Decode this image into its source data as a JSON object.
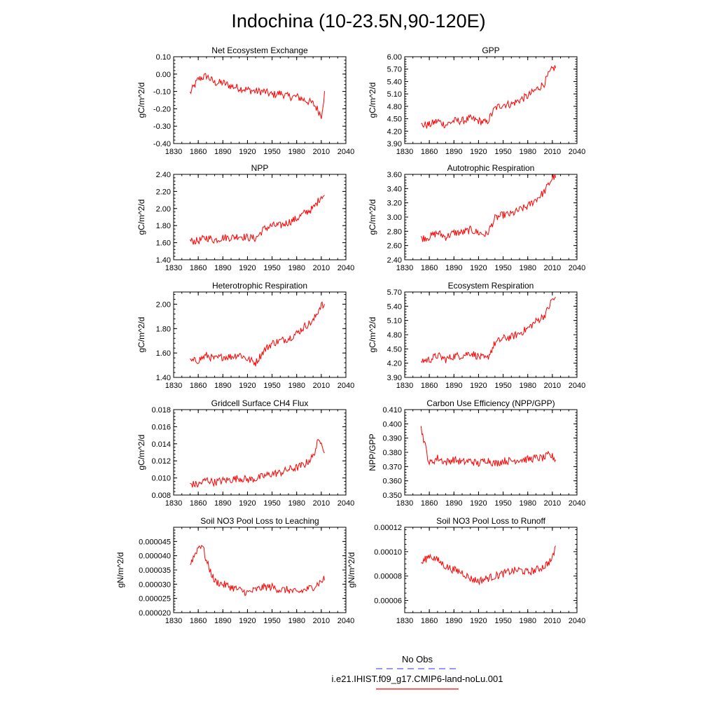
{
  "figure": {
    "title": "Indochina (10-23.5N,90-120E)"
  },
  "legend": {
    "items": [
      {
        "label": "No Obs",
        "color": "#5a5ae6",
        "style": "dashed"
      },
      {
        "label": "i.e21.IHIST.f09_g17.CMIP6-land-noLu.001",
        "color": "#ff0000",
        "style": "solid"
      }
    ]
  },
  "chart_data": [
    {
      "type": "line",
      "title": "Net Ecosystem Exchange",
      "ylabel": "gC/m^2/d",
      "xlim": [
        1830,
        2040
      ],
      "ylim": [
        -0.4,
        0.1
      ],
      "xticks": [
        "1830",
        "1860",
        "1890",
        "1920",
        "1950",
        "1980",
        "2010",
        "2040"
      ],
      "yticks": [
        "-0.40",
        "-0.30",
        "-0.20",
        "-0.10",
        "0.00",
        "0.10"
      ],
      "series": [
        {
          "color": "#ff0000",
          "x": [
            1850,
            1860,
            1870,
            1880,
            1890,
            1900,
            1910,
            1920,
            1930,
            1940,
            1950,
            1960,
            1970,
            1980,
            1990,
            2000,
            2005,
            2010,
            2014
          ],
          "values": [
            -0.11,
            -0.03,
            -0.01,
            -0.05,
            -0.05,
            -0.07,
            -0.08,
            -0.09,
            -0.1,
            -0.1,
            -0.12,
            -0.11,
            -0.13,
            -0.13,
            -0.15,
            -0.17,
            -0.2,
            -0.24,
            -0.11
          ]
        }
      ]
    },
    {
      "type": "line",
      "title": "GPP",
      "ylabel": "gC/m^2/d",
      "xlim": [
        1830,
        2040
      ],
      "ylim": [
        3.9,
        6.0
      ],
      "xticks": [
        "1830",
        "1860",
        "1890",
        "1920",
        "1950",
        "1980",
        "2010",
        "2040"
      ],
      "yticks": [
        "3.90",
        "4.20",
        "4.50",
        "4.80",
        "5.10",
        "5.40",
        "5.70",
        "6.00"
      ],
      "series": [
        {
          "color": "#ff0000",
          "x": [
            1850,
            1860,
            1870,
            1880,
            1890,
            1900,
            1910,
            1920,
            1930,
            1940,
            1950,
            1960,
            1970,
            1980,
            1990,
            2000,
            2005,
            2010,
            2014
          ],
          "values": [
            4.35,
            4.35,
            4.45,
            4.35,
            4.45,
            4.45,
            4.5,
            4.45,
            4.4,
            4.75,
            4.85,
            4.85,
            4.95,
            5.05,
            5.2,
            5.35,
            5.55,
            5.7,
            5.75
          ]
        }
      ]
    },
    {
      "type": "line",
      "title": "NPP",
      "ylabel": "gC/m^2/d",
      "xlim": [
        1830,
        2040
      ],
      "ylim": [
        1.4,
        2.4
      ],
      "xticks": [
        "1830",
        "1860",
        "1890",
        "1920",
        "1950",
        "1980",
        "2010",
        "2040"
      ],
      "yticks": [
        "1.40",
        "1.60",
        "1.80",
        "2.00",
        "2.20",
        "2.40"
      ],
      "series": [
        {
          "color": "#ff0000",
          "x": [
            1850,
            1860,
            1870,
            1880,
            1890,
            1900,
            1910,
            1920,
            1930,
            1940,
            1950,
            1960,
            1970,
            1980,
            1990,
            2000,
            2005,
            2010,
            2014
          ],
          "values": [
            1.62,
            1.62,
            1.66,
            1.63,
            1.66,
            1.66,
            1.68,
            1.66,
            1.65,
            1.76,
            1.8,
            1.8,
            1.84,
            1.88,
            1.95,
            2.0,
            2.07,
            2.15,
            2.15
          ]
        }
      ]
    },
    {
      "type": "line",
      "title": "Autotrophic Respiration",
      "ylabel": "gC/m^2/d",
      "xlim": [
        1830,
        2040
      ],
      "ylim": [
        2.4,
        3.6
      ],
      "xticks": [
        "1830",
        "1860",
        "1890",
        "1920",
        "1950",
        "1980",
        "2010",
        "2040"
      ],
      "yticks": [
        "2.40",
        "2.60",
        "2.80",
        "3.00",
        "3.20",
        "3.40",
        "3.60"
      ],
      "series": [
        {
          "color": "#ff0000",
          "x": [
            1850,
            1860,
            1870,
            1880,
            1890,
            1900,
            1910,
            1920,
            1930,
            1940,
            1950,
            1960,
            1970,
            1980,
            1990,
            2000,
            2005,
            2010,
            2014
          ],
          "values": [
            2.7,
            2.72,
            2.78,
            2.72,
            2.78,
            2.78,
            2.82,
            2.78,
            2.75,
            2.98,
            3.03,
            3.04,
            3.1,
            3.15,
            3.25,
            3.35,
            3.45,
            3.55,
            3.58
          ]
        }
      ]
    },
    {
      "type": "line",
      "title": "Heterotrophic Respiration",
      "ylabel": "gC/m^2/d",
      "xlim": [
        1830,
        2040
      ],
      "ylim": [
        1.4,
        2.1
      ],
      "xticks": [
        "1830",
        "1860",
        "1890",
        "1920",
        "1950",
        "1980",
        "2010",
        "2040"
      ],
      "yticks": [
        "1.40",
        "1.60",
        "1.80",
        "2.00"
      ],
      "series": [
        {
          "color": "#ff0000",
          "x": [
            1850,
            1860,
            1870,
            1880,
            1890,
            1900,
            1910,
            1920,
            1930,
            1940,
            1950,
            1960,
            1970,
            1980,
            1990,
            2000,
            2005,
            2010,
            2014
          ],
          "values": [
            1.53,
            1.54,
            1.58,
            1.55,
            1.57,
            1.57,
            1.59,
            1.55,
            1.52,
            1.62,
            1.68,
            1.7,
            1.72,
            1.76,
            1.82,
            1.86,
            1.93,
            2.0,
            1.97
          ]
        }
      ]
    },
    {
      "type": "line",
      "title": "Ecosystem Respiration",
      "ylabel": "gC/m^2/d",
      "xlim": [
        1830,
        2040
      ],
      "ylim": [
        3.9,
        5.7
      ],
      "xticks": [
        "1830",
        "1860",
        "1890",
        "1920",
        "1950",
        "1980",
        "2010",
        "2040"
      ],
      "yticks": [
        "3.90",
        "4.20",
        "4.50",
        "4.80",
        "5.10",
        "5.40",
        "5.70"
      ],
      "series": [
        {
          "color": "#ff0000",
          "x": [
            1850,
            1860,
            1870,
            1880,
            1890,
            1900,
            1910,
            1920,
            1930,
            1940,
            1950,
            1960,
            1970,
            1980,
            1990,
            2000,
            2005,
            2010,
            2014
          ],
          "values": [
            4.25,
            4.27,
            4.36,
            4.28,
            4.35,
            4.36,
            4.42,
            4.34,
            4.28,
            4.62,
            4.72,
            4.75,
            4.83,
            4.93,
            5.08,
            5.2,
            5.35,
            5.55,
            5.55
          ]
        }
      ]
    },
    {
      "type": "line",
      "title": "Gridcell Surface CH4 Flux",
      "ylabel": "gC/m^2/d",
      "xlim": [
        1830,
        2040
      ],
      "ylim": [
        0.008,
        0.018
      ],
      "xticks": [
        "1830",
        "1860",
        "1890",
        "1920",
        "1950",
        "1980",
        "2010",
        "2040"
      ],
      "yticks": [
        "0.008",
        "0.010",
        "0.012",
        "0.014",
        "0.016",
        "0.018"
      ],
      "series": [
        {
          "color": "#ff0000",
          "x": [
            1850,
            1860,
            1870,
            1880,
            1890,
            1900,
            1910,
            1920,
            1930,
            1940,
            1950,
            1960,
            1970,
            1980,
            1990,
            2000,
            2005,
            2010,
            2014
          ],
          "values": [
            0.0093,
            0.0092,
            0.0098,
            0.0095,
            0.0097,
            0.0098,
            0.01,
            0.0098,
            0.0099,
            0.0102,
            0.0105,
            0.0106,
            0.011,
            0.0112,
            0.0116,
            0.0125,
            0.014,
            0.0145,
            0.013
          ]
        }
      ]
    },
    {
      "type": "line",
      "title": "Carbon Use Efficiency (NPP/GPP)",
      "ylabel": "NPP/GPP",
      "xlim": [
        1830,
        2040
      ],
      "ylim": [
        0.35,
        0.41
      ],
      "xticks": [
        "1830",
        "1860",
        "1890",
        "1920",
        "1950",
        "1980",
        "2010",
        "2040"
      ],
      "yticks": [
        "0.350",
        "0.360",
        "0.370",
        "0.380",
        "0.390",
        "0.400",
        "0.410"
      ],
      "series": [
        {
          "color": "#ff0000",
          "x": [
            1850,
            1860,
            1870,
            1880,
            1890,
            1900,
            1910,
            1920,
            1930,
            1940,
            1950,
            1960,
            1970,
            1980,
            1990,
            2000,
            2005,
            2010,
            2014
          ],
          "values": [
            0.397,
            0.372,
            0.376,
            0.373,
            0.375,
            0.373,
            0.374,
            0.372,
            0.375,
            0.372,
            0.374,
            0.374,
            0.375,
            0.375,
            0.376,
            0.376,
            0.378,
            0.377,
            0.375
          ]
        }
      ]
    },
    {
      "type": "line",
      "title": "Soil NO3 Pool Loss to Leaching",
      "ylabel": "gN/m^2/d",
      "xlim": [
        1830,
        2040
      ],
      "ylim": [
        2e-05,
        5e-05
      ],
      "xticks": [
        "1830",
        "1860",
        "1890",
        "1920",
        "1950",
        "1980",
        "2010",
        "2040"
      ],
      "yticks": [
        "0.000020",
        "0.000025",
        "0.000030",
        "0.000035",
        "0.000040",
        "0.000045"
      ],
      "series": [
        {
          "color": "#ff0000",
          "x": [
            1850,
            1855,
            1860,
            1865,
            1870,
            1880,
            1890,
            1900,
            1910,
            1920,
            1930,
            1940,
            1950,
            1960,
            1970,
            1980,
            1990,
            2000,
            2010,
            2014
          ],
          "values": [
            3.7e-05,
            4e-05,
            4.3e-05,
            4.4e-05,
            3.8e-05,
            3.1e-05,
            3e-05,
            2.9e-05,
            2.8e-05,
            2.7e-05,
            2.8e-05,
            2.9e-05,
            2.9e-05,
            2.8e-05,
            2.8e-05,
            2.7e-05,
            2.8e-05,
            2.9e-05,
            3.1e-05,
            3.2e-05
          ]
        }
      ]
    },
    {
      "type": "line",
      "title": "Soil NO3 Pool Loss to Runoff",
      "ylabel": "gN/m^2/d",
      "xlim": [
        1830,
        2040
      ],
      "ylim": [
        5e-05,
        0.00012
      ],
      "xticks": [
        "1830",
        "1860",
        "1890",
        "1920",
        "1950",
        "1980",
        "2010",
        "2040"
      ],
      "yticks": [
        "0.00006",
        "0.00008",
        "0.00010",
        "0.00012"
      ],
      "series": [
        {
          "color": "#ff0000",
          "x": [
            1850,
            1860,
            1870,
            1880,
            1890,
            1900,
            1910,
            1920,
            1930,
            1940,
            1950,
            1960,
            1970,
            1980,
            1990,
            2000,
            2010,
            2014
          ],
          "values": [
            9e-05,
            9.7e-05,
            9.3e-05,
            8.8e-05,
            8.5e-05,
            8.3e-05,
            7.8e-05,
            7.6e-05,
            7.8e-05,
            8e-05,
            8.2e-05,
            8.4e-05,
            8.5e-05,
            8.3e-05,
            8.5e-05,
            8.8e-05,
            9.4e-05,
            0.000105
          ]
        }
      ]
    }
  ]
}
